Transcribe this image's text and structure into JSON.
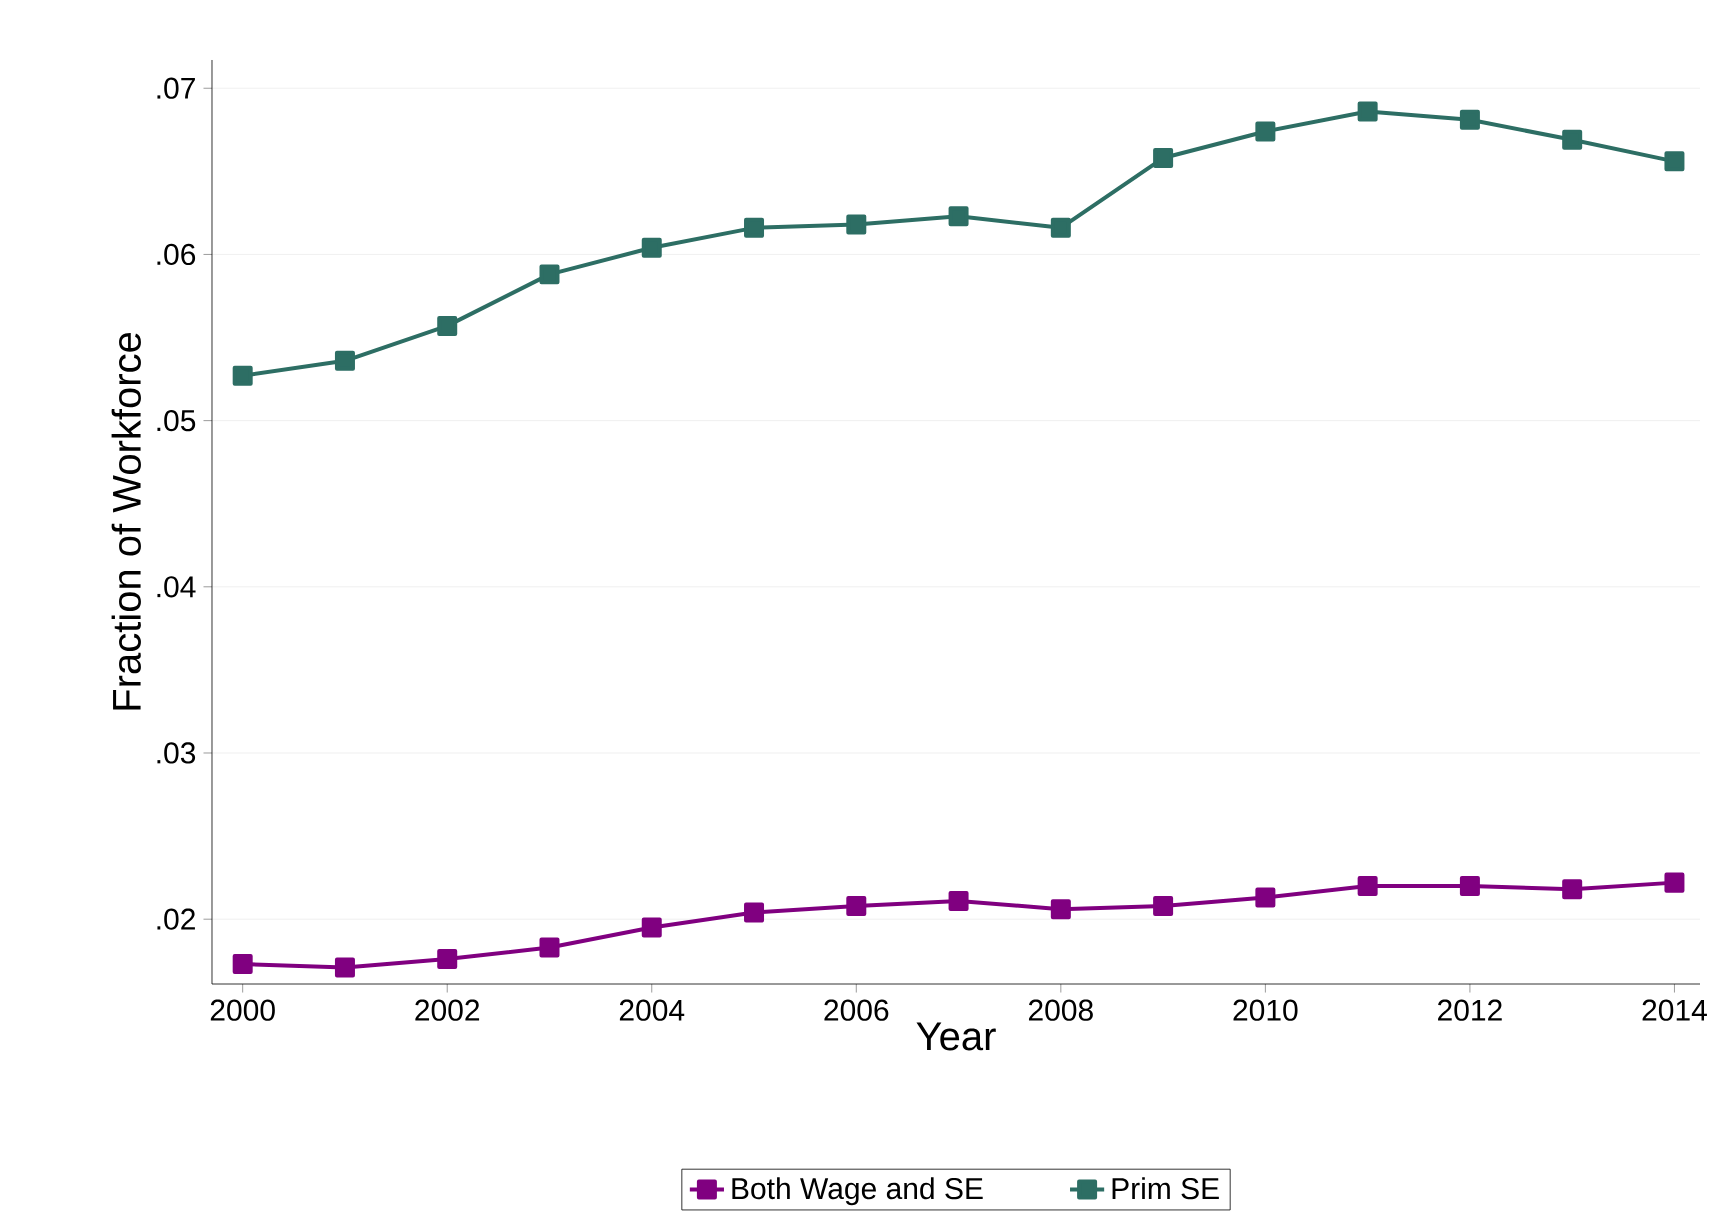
{
  "chart_data": {
    "type": "line",
    "xlabel": "Year",
    "ylabel": "Fraction of Workforce",
    "x": [
      2000,
      2001,
      2002,
      2003,
      2004,
      2005,
      2006,
      2007,
      2008,
      2009,
      2010,
      2011,
      2012,
      2013,
      2014
    ],
    "series": [
      {
        "name": "Both Wage and SE",
        "color": "#800080",
        "values": [
          0.0173,
          0.0171,
          0.0176,
          0.0183,
          0.0195,
          0.0204,
          0.0208,
          0.0211,
          0.0206,
          0.0208,
          0.0213,
          0.022,
          0.022,
          0.0218,
          0.0222
        ]
      },
      {
        "name": "Prim SE",
        "color": "#2d6e64",
        "values": [
          0.0527,
          0.0536,
          0.0557,
          0.0588,
          0.0604,
          0.0616,
          0.0618,
          0.0623,
          0.0616,
          0.0658,
          0.0674,
          0.0686,
          0.0681,
          0.0669,
          0.0656
        ]
      }
    ],
    "xlim": [
      1999.7,
      2014.25
    ],
    "ylim": [
      0.0161,
      0.0717
    ],
    "xticks": [
      2000,
      2002,
      2004,
      2006,
      2008,
      2010,
      2012,
      2014
    ],
    "yticks": [
      {
        "value": 0.02,
        "label": ".02"
      },
      {
        "value": 0.03,
        "label": ".03"
      },
      {
        "value": 0.04,
        "label": ".04"
      },
      {
        "value": 0.05,
        "label": ".05"
      },
      {
        "value": 0.06,
        "label": ".06"
      },
      {
        "value": 0.07,
        "label": ".07"
      }
    ],
    "grid": "y",
    "legend": "bottom",
    "marker": "square",
    "line_style": "solid"
  }
}
